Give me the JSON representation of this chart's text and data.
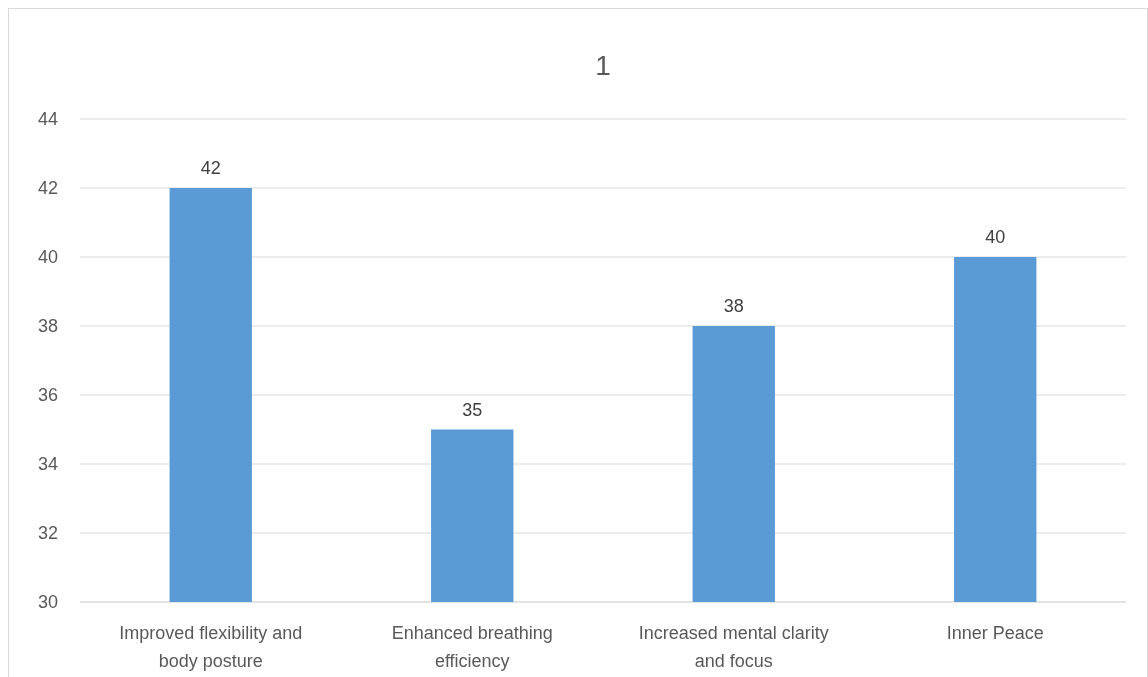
{
  "chart_data": {
    "type": "bar",
    "title": "1",
    "categories": [
      "Improved flexibility and body posture",
      "Enhanced breathing efficiency",
      "Increased mental clarity and focus",
      "Inner Peace"
    ],
    "values": [
      42,
      35,
      38,
      40
    ],
    "color": "#5b9bd5",
    "ylim": [
      30,
      44
    ],
    "yticks": [
      30,
      32,
      34,
      36,
      38,
      40,
      42,
      44
    ],
    "grid": "y",
    "data_labels": true
  }
}
